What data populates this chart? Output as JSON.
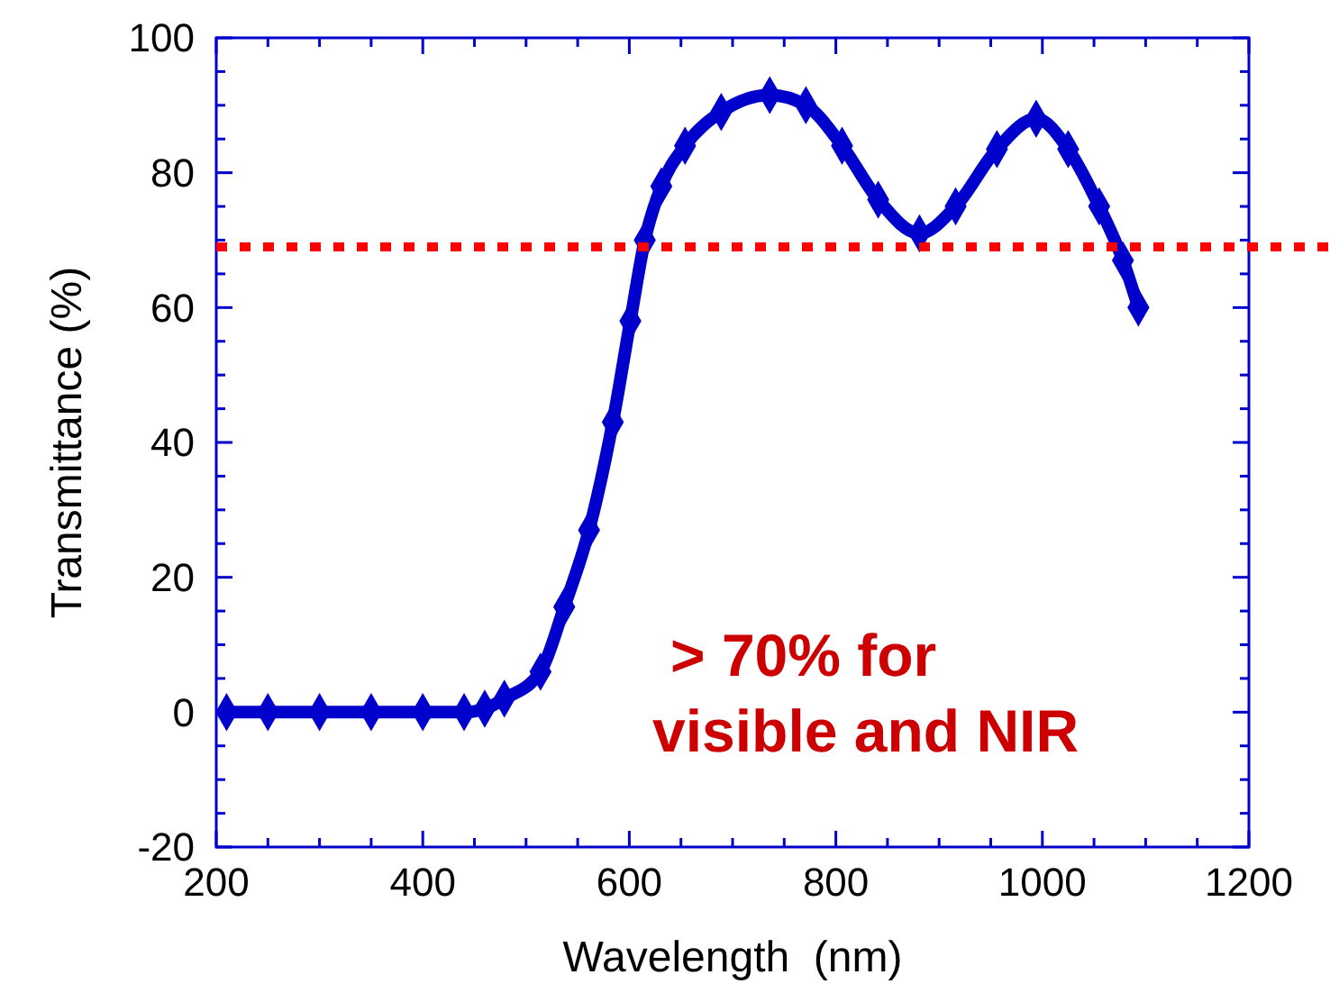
{
  "chart_data": {
    "type": "line",
    "xlabel": "Wavelength  (nm)",
    "ylabel": "Transmittance (%)",
    "x": [
      210,
      250,
      300,
      350,
      400,
      440,
      460,
      479,
      514,
      537,
      561,
      584,
      601,
      615,
      631,
      654,
      689,
      736,
      771,
      806,
      841,
      881,
      916,
      956,
      994,
      1025,
      1055,
      1078,
      1093
    ],
    "series": [
      {
        "color": "#0000cc",
        "values": [
          0,
          0,
          0,
          0,
          0,
          0,
          0.5,
          2,
          6,
          15.6,
          27,
          43,
          58,
          70,
          78,
          84,
          89,
          91.5,
          90,
          84,
          76,
          71,
          75,
          83.5,
          88,
          83.5,
          75,
          67,
          60
        ]
      }
    ],
    "marker": "diamond",
    "line_style": "solid",
    "grid": false,
    "xlim": [
      200,
      1200
    ],
    "ylim": [
      -20,
      100
    ],
    "xticks": [
      200,
      {
        "value": 250,
        "label": null
      },
      400,
      {
        "value": 300,
        "label": null
      },
      {
        "value": 350,
        "label": null
      },
      {
        "value": 450,
        "label": null
      },
      {
        "value": 500,
        "label": null
      },
      {
        "value": 550,
        "label": null
      },
      600,
      {
        "value": 650,
        "label": null
      },
      {
        "value": 700,
        "label": null
      },
      {
        "value": 750,
        "label": null
      },
      800,
      {
        "value": 850,
        "label": null
      },
      {
        "value": 900,
        "label": null
      },
      {
        "value": 950,
        "label": null
      },
      1000,
      {
        "value": 1050,
        "label": null
      },
      {
        "value": 1100,
        "label": null
      },
      {
        "value": 1150,
        "label": null
      },
      1200
    ],
    "yticks": [
      -20,
      {
        "value": -15,
        "label": null
      },
      {
        "value": -10,
        "label": null
      },
      {
        "value": -5,
        "label": null
      },
      0,
      {
        "value": 5,
        "label": null
      },
      {
        "value": 10,
        "label": null
      },
      {
        "value": 15,
        "label": null
      },
      20,
      {
        "value": 25,
        "label": null
      },
      {
        "value": 30,
        "label": null
      },
      {
        "value": 35,
        "label": null
      },
      40,
      {
        "value": 45,
        "label": null
      },
      {
        "value": 50,
        "label": null
      },
      {
        "value": 55,
        "label": null
      },
      60,
      {
        "value": 65,
        "label": null
      },
      {
        "value": 70,
        "label": null
      },
      {
        "value": 75,
        "label": null
      },
      80,
      {
        "value": 85,
        "label": null
      },
      {
        "value": 90,
        "label": null
      },
      {
        "value": 95,
        "label": null
      },
      100
    ],
    "ref_lines": [
      {
        "axis": "y",
        "value": 69,
        "label": null,
        "color": "#ff0000",
        "line_style": "dotted"
      }
    ],
    "annotations": [
      "> 70% for\nvisible and NIR"
    ]
  }
}
